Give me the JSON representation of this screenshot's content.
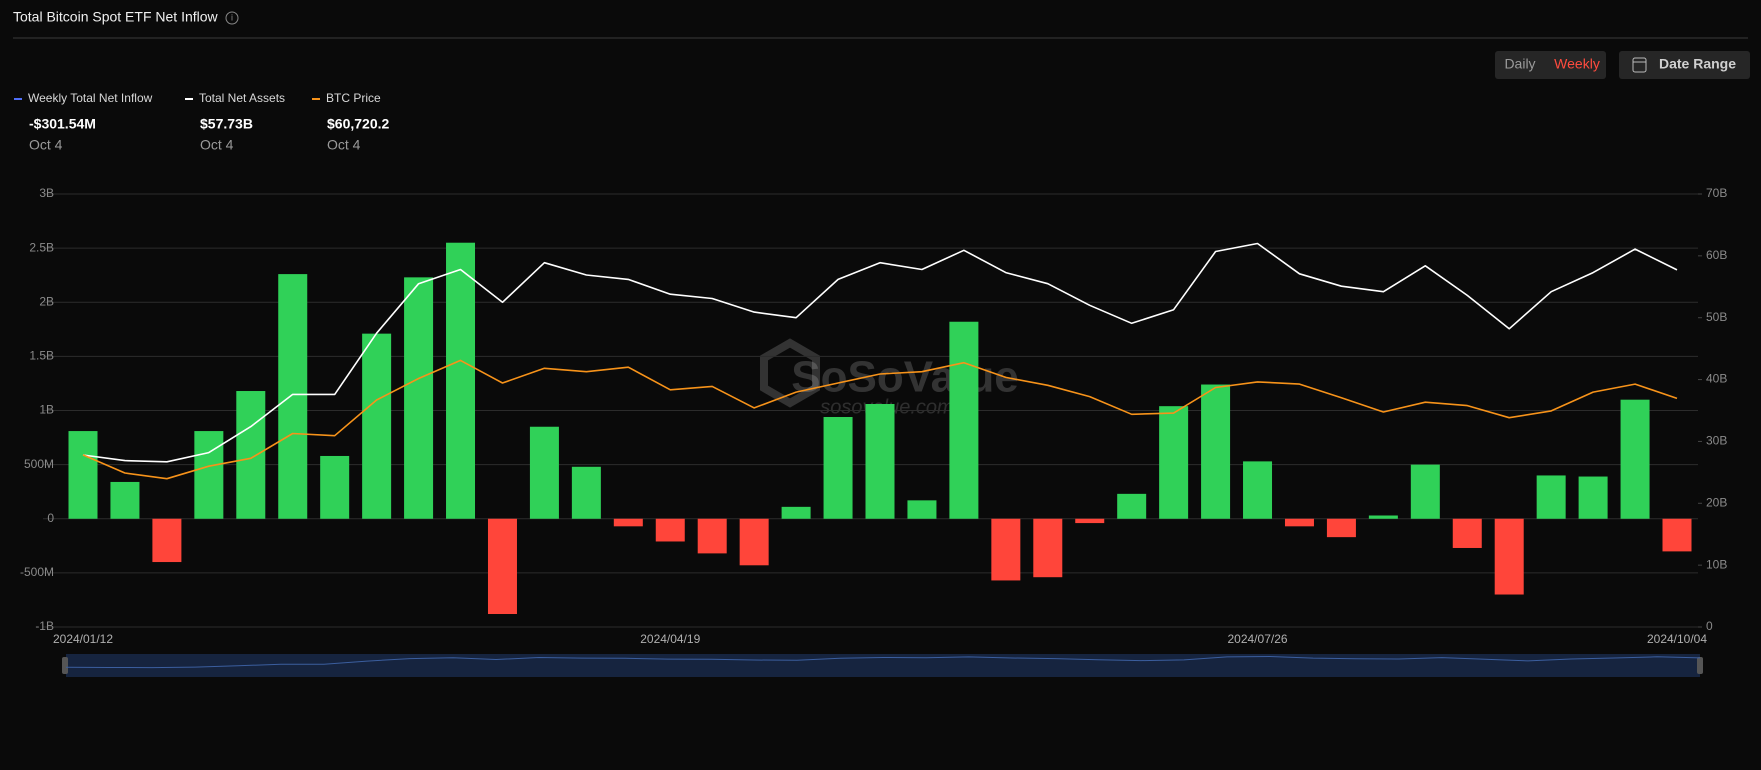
{
  "header": {
    "title": "Total Bitcoin Spot ETF Net Inflow",
    "interval_options": [
      "Daily",
      "Weekly"
    ],
    "selected_interval": 1,
    "date_range": "Date Range"
  },
  "watermark": {
    "brand": "SoSoValue",
    "site": "sosovalue.com"
  },
  "chart_data": {
    "type": "combo",
    "categories": [
      "2024/01/12",
      null,
      null,
      null,
      null,
      null,
      null,
      null,
      null,
      null,
      null,
      null,
      null,
      null,
      "2024/04/19",
      null,
      null,
      null,
      null,
      null,
      null,
      null,
      null,
      null,
      null,
      null,
      null,
      null,
      "2024/07/26",
      null,
      null,
      null,
      null,
      null,
      null,
      null,
      null,
      null,
      "2024/10/04"
    ],
    "series": [
      {
        "name": "Weekly Total Net Inflow",
        "color": "#4f6ef7",
        "positive_color": "#30d158",
        "negative_color": "#ff453a",
        "values": [
          810000000,
          340000000,
          -400000000,
          810000000,
          1180000000,
          2260000000,
          580000000,
          1710000000,
          2230000000,
          2550000000,
          -880000000,
          850000000,
          480000000,
          -70000000,
          -210000000,
          -320000000,
          -430000000,
          110000000,
          940000000,
          1060000000,
          170000000,
          1820000000,
          -570000000,
          -540000000,
          -40000000,
          230000000,
          1040000000,
          1240000000,
          530000000,
          -70000000,
          -170000000,
          30000000,
          500000000,
          -270000000,
          -700000000,
          400000000,
          390000000,
          1100000000,
          -301540000
        ],
        "summary": {
          "value_label": "-$301.54M",
          "date": "Oct 4"
        }
      },
      {
        "name": "Total Net Assets",
        "color": "#ffffff",
        "axis": "y2",
        "values": [
          27800000000,
          26900000000,
          26700000000,
          28200000000,
          32400000000,
          37600000000,
          37600000000,
          47500000000,
          55500000000,
          57800000000,
          52500000000,
          58900000000,
          56900000000,
          56200000000,
          53800000000,
          53100000000,
          50900000000,
          50000000000,
          56200000000,
          58900000000,
          57800000000,
          60900000000,
          57300000000,
          55500000000,
          52000000000,
          49100000000,
          51300000000,
          60700000000,
          62000000000,
          57100000000,
          55100000000,
          54200000000,
          58400000000,
          53600000000,
          48200000000,
          54200000000,
          57300000000,
          61100000000,
          57730000000
        ],
        "summary": {
          "value_label": "$57.73B",
          "date": "Oct 4"
        }
      },
      {
        "name": "BTC Price",
        "color": "#f7931a",
        "axis": "y3",
        "values": [
          45700,
          40900,
          39400,
          42700,
          44800,
          51400,
          50800,
          60300,
          66000,
          70800,
          64800,
          68700,
          67800,
          69000,
          63000,
          63900,
          58200,
          62400,
          64800,
          67200,
          67800,
          70200,
          66300,
          64200,
          61200,
          56500,
          56800,
          63600,
          65100,
          64500,
          60900,
          57100,
          59700,
          58800,
          55600,
          57400,
          62400,
          64500,
          60720.2
        ],
        "summary": {
          "value_label": "$60,720.2",
          "date": "Oct 4"
        }
      }
    ],
    "ylim": [
      -1000000000,
      3000000000
    ],
    "yticks": [
      {
        "value": -1000000000,
        "label": "-1B"
      },
      {
        "value": -500000000,
        "label": "-500M"
      },
      0,
      {
        "value": 500000000,
        "label": "500M"
      },
      {
        "value": 1000000000,
        "label": "1B"
      },
      {
        "value": 1500000000,
        "label": "1.5B"
      },
      {
        "value": 2000000000,
        "label": "2B"
      },
      {
        "value": 2500000000,
        "label": "2.5B"
      },
      {
        "value": 3000000000,
        "label": "3B"
      }
    ],
    "y2lim": [
      0,
      70000000000
    ],
    "y2ticks": [
      0,
      {
        "value": 10000000000,
        "label": "10B"
      },
      {
        "value": 20000000000,
        "label": "20B"
      },
      {
        "value": 30000000000,
        "label": "30B"
      },
      {
        "value": 40000000000,
        "label": "40B"
      },
      {
        "value": 50000000000,
        "label": "50B"
      },
      {
        "value": 60000000000,
        "label": "60B"
      },
      {
        "value": 70000000000,
        "label": "70B"
      }
    ],
    "y3lim": [
      0,
      115000
    ],
    "grid": true
  }
}
